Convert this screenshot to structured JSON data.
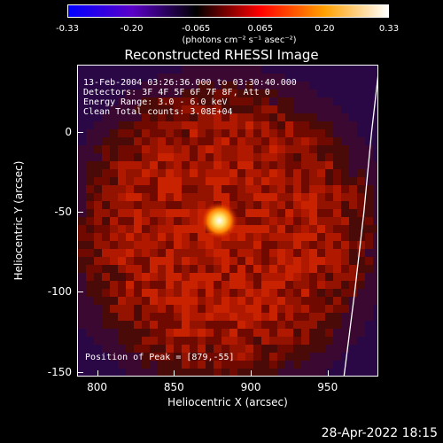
{
  "colorbar": {
    "ticks": [
      "-0.33",
      "-0.20",
      "-0.065",
      "0.065",
      "0.20",
      "0.33"
    ],
    "units": "(photons cm⁻² s⁻¹ asec⁻²)",
    "colors": [
      "#0000ff",
      "#5a00c8",
      "#000000",
      "#ff0000",
      "#ffa000",
      "#ffffff"
    ]
  },
  "chart_data": {
    "type": "heatmap",
    "title": "Reconstructed RHESSI Image",
    "xlabel": "Heliocentric X (arcsec)",
    "ylabel": "Heliocentric Y (arcsec)",
    "xlim": [
      787,
      983
    ],
    "ylim": [
      -153,
      42
    ],
    "xticks": [
      "800",
      "850",
      "900",
      "950"
    ],
    "xtick_values": [
      800,
      850,
      900,
      950
    ],
    "yticks": [
      "0",
      "-50",
      "-100",
      "-150"
    ],
    "ytick_values": [
      0,
      -50,
      -100,
      -150
    ],
    "peak": [
      879,
      -55
    ],
    "value_range": [
      -0.33,
      0.33
    ],
    "limb_curve": [
      [
        983,
        42
      ],
      [
        978,
        0
      ],
      [
        973,
        -50
      ],
      [
        967,
        -100
      ],
      [
        960,
        -153
      ]
    ],
    "annotations": [
      "13-Feb-2004 03:26:36.000 to 03:30:40.000",
      "Detectors: 3F 4F 5F 6F 7F 8F, Att 0",
      "Energy Range: 3.0 - 6.0 keV",
      "Clean     Total counts: 3.08E+04"
    ],
    "peak_label": "Position of Peak = [879,-55]"
  },
  "footer": {
    "date": "28-Apr-2022 18:15"
  }
}
